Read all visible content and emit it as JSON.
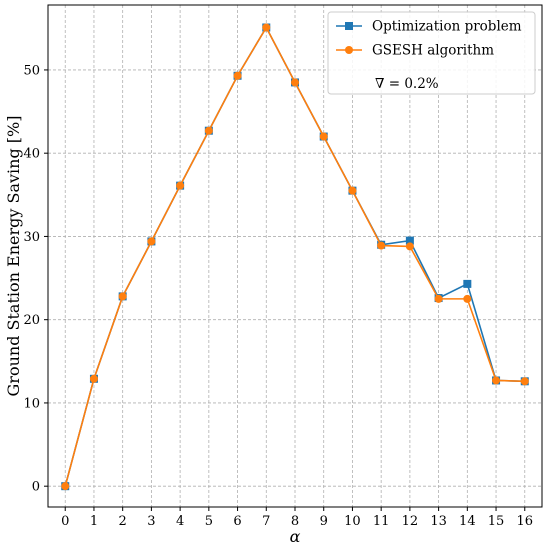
{
  "chart_data": {
    "type": "line",
    "x": [
      0,
      1,
      2,
      3,
      4,
      5,
      6,
      7,
      8,
      9,
      10,
      11,
      12,
      13,
      14,
      15,
      16
    ],
    "series": [
      {
        "name": "Optimization problem",
        "color": "#1f77b4",
        "marker": "square",
        "values": [
          0,
          12.9,
          22.8,
          29.4,
          36.1,
          42.7,
          49.3,
          55.1,
          48.5,
          42.0,
          35.5,
          29.0,
          29.5,
          22.6,
          24.3,
          12.7,
          12.6
        ]
      },
      {
        "name": "GSESH algorithm",
        "color": "#ff7f0e",
        "marker": "circle",
        "values": [
          0,
          12.9,
          22.8,
          29.4,
          36.1,
          42.7,
          49.3,
          55.1,
          48.5,
          42.0,
          35.5,
          28.9,
          28.8,
          22.5,
          22.5,
          12.7,
          12.6
        ]
      }
    ],
    "legend_note": "∇ = 0.2%",
    "xlabel": "α",
    "ylabel": "Ground Station Energy Saving [%]",
    "x_ticks": [
      "0",
      "1",
      "2",
      "3",
      "4",
      "5",
      "6",
      "7",
      "8",
      "9",
      "10",
      "11",
      "12",
      "13",
      "14",
      "15",
      "16"
    ],
    "y_ticks": [
      "0",
      "10",
      "20",
      "30",
      "40",
      "50"
    ],
    "xlim": [
      -0.6,
      16.6
    ],
    "ylim": [
      -2.5,
      57.8
    ],
    "grid": true,
    "legend_position": "top-right"
  }
}
